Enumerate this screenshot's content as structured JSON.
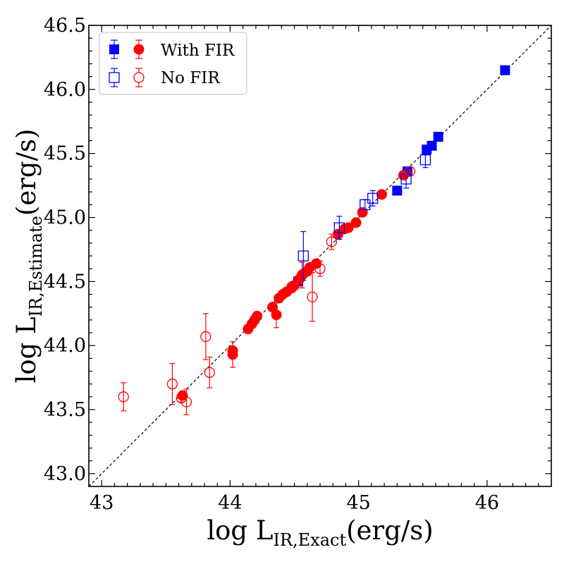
{
  "chart_data": {
    "type": "scatter",
    "xlabel": {
      "main": "log L",
      "sub": "IR,Exact",
      "unit": "(erg/s)"
    },
    "ylabel": {
      "main": "log L",
      "sub": "IR,Estimate",
      "unit": "(erg/s)"
    },
    "xlim": [
      42.9,
      46.5
    ],
    "ylim": [
      42.9,
      46.5
    ],
    "xticks": [
      43,
      44,
      45,
      46
    ],
    "xtick_labels": [
      "43",
      "44",
      "45",
      "46"
    ],
    "yticks": [
      43.0,
      43.5,
      44.0,
      44.5,
      45.0,
      45.5,
      46.0,
      46.5
    ],
    "ytick_labels": [
      "43.0",
      "43.5",
      "44.0",
      "44.5",
      "45.0",
      "45.5",
      "46.0",
      "46.5"
    ],
    "reference_line": "one-to-one",
    "legend_position": "top-left",
    "legend": [
      {
        "label": "With FIR",
        "style": "filled"
      },
      {
        "label": "No FIR",
        "style": "open"
      }
    ],
    "colors": {
      "square": "#0000ff",
      "circle": "#ff0000",
      "line": "#000000"
    },
    "series": [
      {
        "marker": "square",
        "fill": "filled",
        "points": [
          [
            46.14,
            46.15,
            0.01
          ],
          [
            45.62,
            45.63,
            0.01
          ],
          [
            45.57,
            45.56,
            0.01
          ],
          [
            45.53,
            45.53,
            0.01
          ],
          [
            45.38,
            45.36,
            0.02
          ],
          [
            45.3,
            45.21,
            0.03
          ],
          [
            44.53,
            44.5,
            0.02
          ]
        ]
      },
      {
        "marker": "circle",
        "fill": "filled",
        "points": [
          [
            45.18,
            45.18,
            0.01
          ],
          [
            45.35,
            45.33,
            0.01
          ],
          [
            45.03,
            45.04,
            0.01
          ],
          [
            44.98,
            44.96,
            0.01
          ],
          [
            44.92,
            44.92,
            0.01
          ],
          [
            44.89,
            44.91,
            0.01
          ],
          [
            44.84,
            44.87,
            0.01
          ],
          [
            44.67,
            44.64,
            0.01
          ],
          [
            44.62,
            44.61,
            0.01
          ],
          [
            44.6,
            44.58,
            0.01
          ],
          [
            44.57,
            44.56,
            0.01
          ],
          [
            44.54,
            44.52,
            0.01
          ],
          [
            44.5,
            44.47,
            0.01
          ],
          [
            44.48,
            44.45,
            0.01
          ],
          [
            44.44,
            44.42,
            0.01
          ],
          [
            44.41,
            44.4,
            0.01
          ],
          [
            44.38,
            44.37,
            0.01
          ],
          [
            44.33,
            44.3,
            0.03
          ],
          [
            44.36,
            44.24,
            0.1
          ],
          [
            44.21,
            44.23,
            0.01
          ],
          [
            44.19,
            44.2,
            0.01
          ],
          [
            44.17,
            44.17,
            0.01
          ],
          [
            44.14,
            44.13,
            0.01
          ],
          [
            44.02,
            43.96,
            0.02
          ],
          [
            44.02,
            43.93,
            0.1
          ],
          [
            43.63,
            43.61,
            0.02
          ]
        ]
      },
      {
        "marker": "square",
        "fill": "open",
        "points": [
          [
            45.52,
            45.45,
            0.06
          ],
          [
            45.37,
            45.3,
            0.07
          ],
          [
            45.11,
            45.15,
            0.06
          ],
          [
            45.05,
            45.1,
            0.04
          ],
          [
            44.85,
            44.92,
            0.09
          ],
          [
            44.57,
            44.7,
            0.19
          ]
        ]
      },
      {
        "marker": "circle",
        "fill": "open",
        "points": [
          [
            45.4,
            45.36,
            0.01
          ],
          [
            44.79,
            44.81,
            0.06
          ],
          [
            44.7,
            44.6,
            0.06
          ],
          [
            44.64,
            44.38,
            0.19
          ],
          [
            44.56,
            44.55,
            0.1
          ],
          [
            44.48,
            44.46,
            0.02
          ],
          [
            43.81,
            44.07,
            0.18
          ],
          [
            43.84,
            43.79,
            0.12
          ],
          [
            43.55,
            43.7,
            0.16
          ],
          [
            43.62,
            43.59,
            0.03
          ],
          [
            43.66,
            43.56,
            0.1
          ],
          [
            43.17,
            43.6,
            0.11
          ]
        ]
      }
    ]
  }
}
